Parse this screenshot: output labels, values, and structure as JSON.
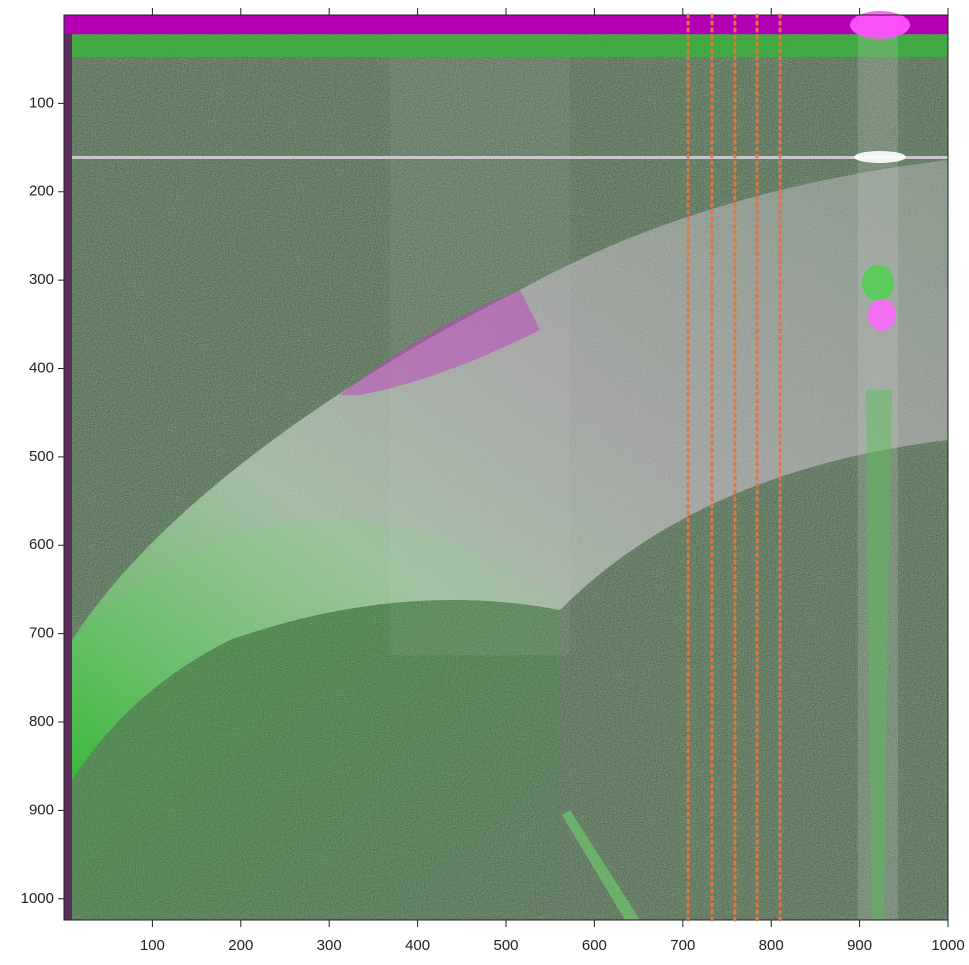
{
  "chart_data": {
    "type": "image",
    "xlim": [
      0,
      1000
    ],
    "ylim": [
      0,
      1024
    ],
    "y_inverted": true,
    "xticks": [
      100,
      200,
      300,
      400,
      500,
      600,
      700,
      800,
      900,
      1000
    ],
    "yticks": [
      100,
      200,
      300,
      400,
      500,
      600,
      700,
      800,
      900,
      1000
    ],
    "vlines": {
      "color": "#e8743b",
      "values": [
        706,
        733,
        759,
        784,
        810
      ]
    }
  }
}
